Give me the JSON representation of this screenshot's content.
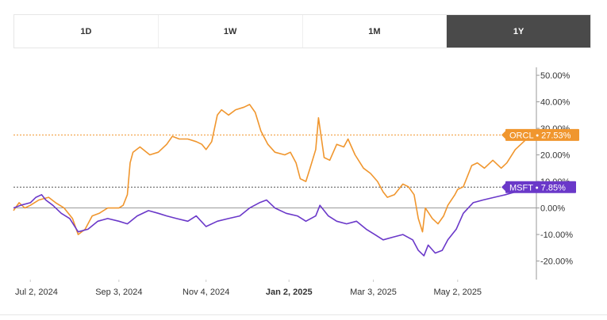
{
  "tabs": [
    {
      "label": "1D",
      "active": false
    },
    {
      "label": "1W",
      "active": false
    },
    {
      "label": "1M",
      "active": false
    },
    {
      "label": "1Y",
      "active": true
    }
  ],
  "chart_data": {
    "type": "line",
    "x_labels": [
      {
        "label": "Jul 2, 2024",
        "date": "2024-07-02",
        "bold": false
      },
      {
        "label": "Sep 3, 2024",
        "date": "2024-09-03",
        "bold": false
      },
      {
        "label": "Nov 4, 2024",
        "date": "2024-11-04",
        "bold": false
      },
      {
        "label": "Jan 2, 2025",
        "date": "2025-01-02",
        "bold": true
      },
      {
        "label": "Mar 3, 2025",
        "date": "2025-03-03",
        "bold": false
      },
      {
        "label": "May 2, 2025",
        "date": "2025-05-02",
        "bold": false
      }
    ],
    "xlim": [
      "2024-06-20",
      "2025-06-27"
    ],
    "y_ticks": [
      -20,
      -10,
      0,
      10,
      20,
      30,
      40,
      50
    ],
    "y_tick_labels": [
      "-20.00%",
      "-10.00%",
      "0.00%",
      "10.00%",
      "20.00%",
      "30.00%",
      "40.00%",
      "50.00%"
    ],
    "ylim": [
      -27,
      53
    ],
    "zero_line": 0,
    "legend": "none",
    "series": [
      {
        "name": "ORCL",
        "color": "#f0962e",
        "last_label": "ORCL • 27.53%",
        "last_value": 27.53,
        "points": [
          [
            "2024-06-20",
            -1
          ],
          [
            "2024-06-24",
            2
          ],
          [
            "2024-06-28",
            0
          ],
          [
            "2024-07-02",
            1
          ],
          [
            "2024-07-08",
            3
          ],
          [
            "2024-07-15",
            4
          ],
          [
            "2024-07-20",
            2
          ],
          [
            "2024-07-26",
            0
          ],
          [
            "2024-08-01",
            -4
          ],
          [
            "2024-08-05",
            -10
          ],
          [
            "2024-08-10",
            -8
          ],
          [
            "2024-08-15",
            -3
          ],
          [
            "2024-08-20",
            -2
          ],
          [
            "2024-08-26",
            0
          ],
          [
            "2024-09-03",
            0
          ],
          [
            "2024-09-06",
            1
          ],
          [
            "2024-09-09",
            5
          ],
          [
            "2024-09-11",
            17
          ],
          [
            "2024-09-13",
            21
          ],
          [
            "2024-09-18",
            23
          ],
          [
            "2024-09-25",
            20
          ],
          [
            "2024-10-01",
            21
          ],
          [
            "2024-10-07",
            24
          ],
          [
            "2024-10-11",
            27
          ],
          [
            "2024-10-16",
            26
          ],
          [
            "2024-10-22",
            26
          ],
          [
            "2024-10-28",
            25
          ],
          [
            "2024-11-01",
            24
          ],
          [
            "2024-11-04",
            22
          ],
          [
            "2024-11-08",
            25
          ],
          [
            "2024-11-12",
            35
          ],
          [
            "2024-11-15",
            37
          ],
          [
            "2024-11-20",
            35
          ],
          [
            "2024-11-25",
            37
          ],
          [
            "2024-12-01",
            38
          ],
          [
            "2024-12-05",
            39
          ],
          [
            "2024-12-09",
            36
          ],
          [
            "2024-12-13",
            29
          ],
          [
            "2024-12-18",
            24
          ],
          [
            "2024-12-23",
            21
          ],
          [
            "2024-12-30",
            20
          ],
          [
            "2025-01-03",
            21
          ],
          [
            "2025-01-07",
            17
          ],
          [
            "2025-01-10",
            11
          ],
          [
            "2025-01-14",
            10
          ],
          [
            "2025-01-17",
            15
          ],
          [
            "2025-01-21",
            22
          ],
          [
            "2025-01-23",
            34
          ],
          [
            "2025-01-27",
            19
          ],
          [
            "2025-01-31",
            18
          ],
          [
            "2025-02-05",
            24
          ],
          [
            "2025-02-10",
            23
          ],
          [
            "2025-02-13",
            26
          ],
          [
            "2025-02-18",
            20
          ],
          [
            "2025-02-24",
            15
          ],
          [
            "2025-03-01",
            13
          ],
          [
            "2025-03-06",
            10
          ],
          [
            "2025-03-10",
            6
          ],
          [
            "2025-03-13",
            4
          ],
          [
            "2025-03-18",
            5
          ],
          [
            "2025-03-24",
            9
          ],
          [
            "2025-03-28",
            8
          ],
          [
            "2025-04-01",
            5
          ],
          [
            "2025-04-04",
            -4
          ],
          [
            "2025-04-07",
            -9
          ],
          [
            "2025-04-09",
            0
          ],
          [
            "2025-04-14",
            -4
          ],
          [
            "2025-04-18",
            -6
          ],
          [
            "2025-04-22",
            -3
          ],
          [
            "2025-04-25",
            1
          ],
          [
            "2025-04-30",
            5
          ],
          [
            "2025-05-02",
            7
          ],
          [
            "2025-05-06",
            8
          ],
          [
            "2025-05-12",
            16
          ],
          [
            "2025-05-16",
            17
          ],
          [
            "2025-05-21",
            15
          ],
          [
            "2025-05-27",
            18
          ],
          [
            "2025-06-02",
            15
          ],
          [
            "2025-06-06",
            17
          ],
          [
            "2025-06-12",
            22
          ],
          [
            "2025-06-18",
            25
          ],
          [
            "2025-06-23",
            27.53
          ]
        ]
      },
      {
        "name": "MSFT",
        "color": "#6a38c9",
        "last_label": "MSFT • 7.85%",
        "last_value": 7.85,
        "points": [
          [
            "2024-06-20",
            0
          ],
          [
            "2024-06-25",
            1
          ],
          [
            "2024-07-02",
            2
          ],
          [
            "2024-07-06",
            4
          ],
          [
            "2024-07-10",
            5
          ],
          [
            "2024-07-13",
            3
          ],
          [
            "2024-07-18",
            1
          ],
          [
            "2024-07-24",
            -2
          ],
          [
            "2024-07-30",
            -4
          ],
          [
            "2024-08-05",
            -9
          ],
          [
            "2024-08-12",
            -8
          ],
          [
            "2024-08-19",
            -5
          ],
          [
            "2024-08-26",
            -4
          ],
          [
            "2024-09-03",
            -5
          ],
          [
            "2024-09-09",
            -6
          ],
          [
            "2024-09-16",
            -3
          ],
          [
            "2024-09-24",
            -1
          ],
          [
            "2024-10-01",
            -2
          ],
          [
            "2024-10-07",
            -3
          ],
          [
            "2024-10-14",
            -4
          ],
          [
            "2024-10-22",
            -5
          ],
          [
            "2024-10-28",
            -3
          ],
          [
            "2024-11-04",
            -7
          ],
          [
            "2024-11-12",
            -5
          ],
          [
            "2024-11-20",
            -4
          ],
          [
            "2024-11-28",
            -3
          ],
          [
            "2024-12-05",
            0
          ],
          [
            "2024-12-12",
            2
          ],
          [
            "2024-12-17",
            3
          ],
          [
            "2024-12-23",
            0
          ],
          [
            "2024-12-31",
            -2
          ],
          [
            "2025-01-08",
            -3
          ],
          [
            "2025-01-14",
            -5
          ],
          [
            "2025-01-21",
            -3
          ],
          [
            "2025-01-24",
            1
          ],
          [
            "2025-01-30",
            -3
          ],
          [
            "2025-02-05",
            -5
          ],
          [
            "2025-02-12",
            -6
          ],
          [
            "2025-02-19",
            -5
          ],
          [
            "2025-02-26",
            -8
          ],
          [
            "2025-03-04",
            -10
          ],
          [
            "2025-03-10",
            -12
          ],
          [
            "2025-03-17",
            -11
          ],
          [
            "2025-03-24",
            -10
          ],
          [
            "2025-03-31",
            -12
          ],
          [
            "2025-04-04",
            -16
          ],
          [
            "2025-04-08",
            -18
          ],
          [
            "2025-04-11",
            -14
          ],
          [
            "2025-04-16",
            -17
          ],
          [
            "2025-04-21",
            -16
          ],
          [
            "2025-04-25",
            -12
          ],
          [
            "2025-05-01",
            -8
          ],
          [
            "2025-05-06",
            -2
          ],
          [
            "2025-05-13",
            2
          ],
          [
            "2025-05-20",
            3
          ],
          [
            "2025-05-28",
            4
          ],
          [
            "2025-06-05",
            5
          ],
          [
            "2025-06-12",
            6
          ],
          [
            "2025-06-18",
            7
          ],
          [
            "2025-06-23",
            7.85
          ]
        ]
      }
    ]
  }
}
